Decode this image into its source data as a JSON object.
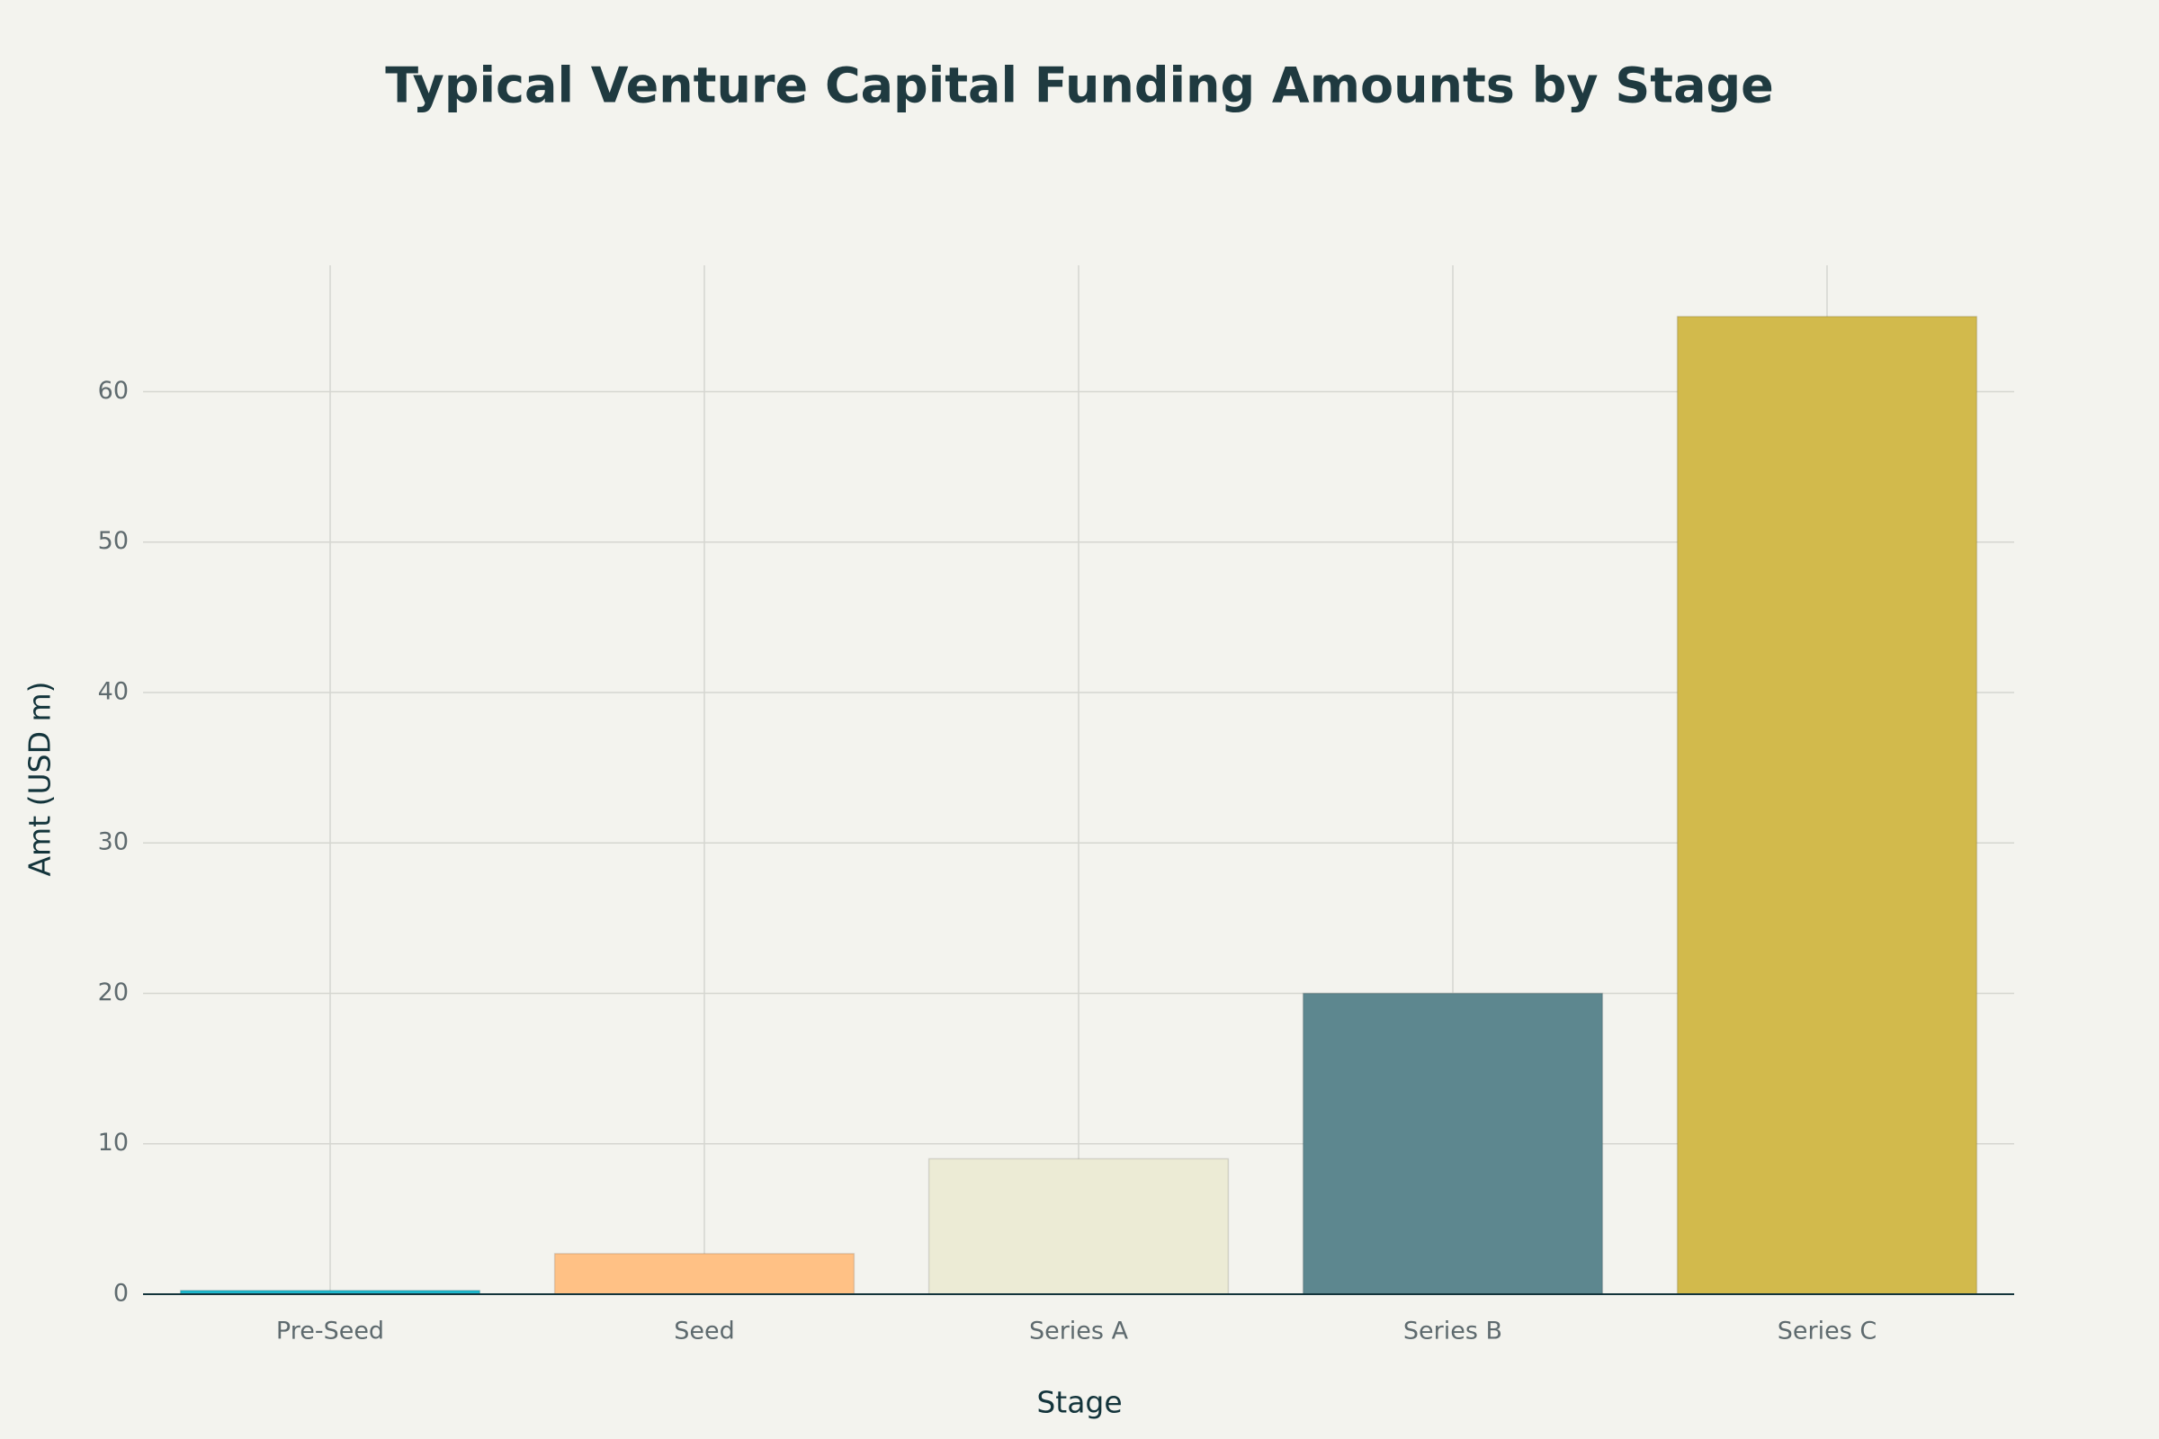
{
  "chart_data": {
    "type": "bar",
    "title": "Typical Venture Capital Funding Amounts by Stage",
    "x_label": "Stage",
    "y_label": "Amt (USD m)",
    "categories": [
      "Pre-Seed",
      "Seed",
      "Series A",
      "Series B",
      "Series C"
    ],
    "values": [
      0.25,
      2.7,
      9,
      20,
      65
    ],
    "colors": [
      "#1FB8CD",
      "#FFC185",
      "#ECEBD5",
      "#5D878F",
      "#D2BA4C"
    ],
    "ylim": [
      0,
      68.4
    ],
    "yticks": [
      0,
      10,
      20,
      30,
      40,
      50,
      60
    ],
    "grid": true
  }
}
